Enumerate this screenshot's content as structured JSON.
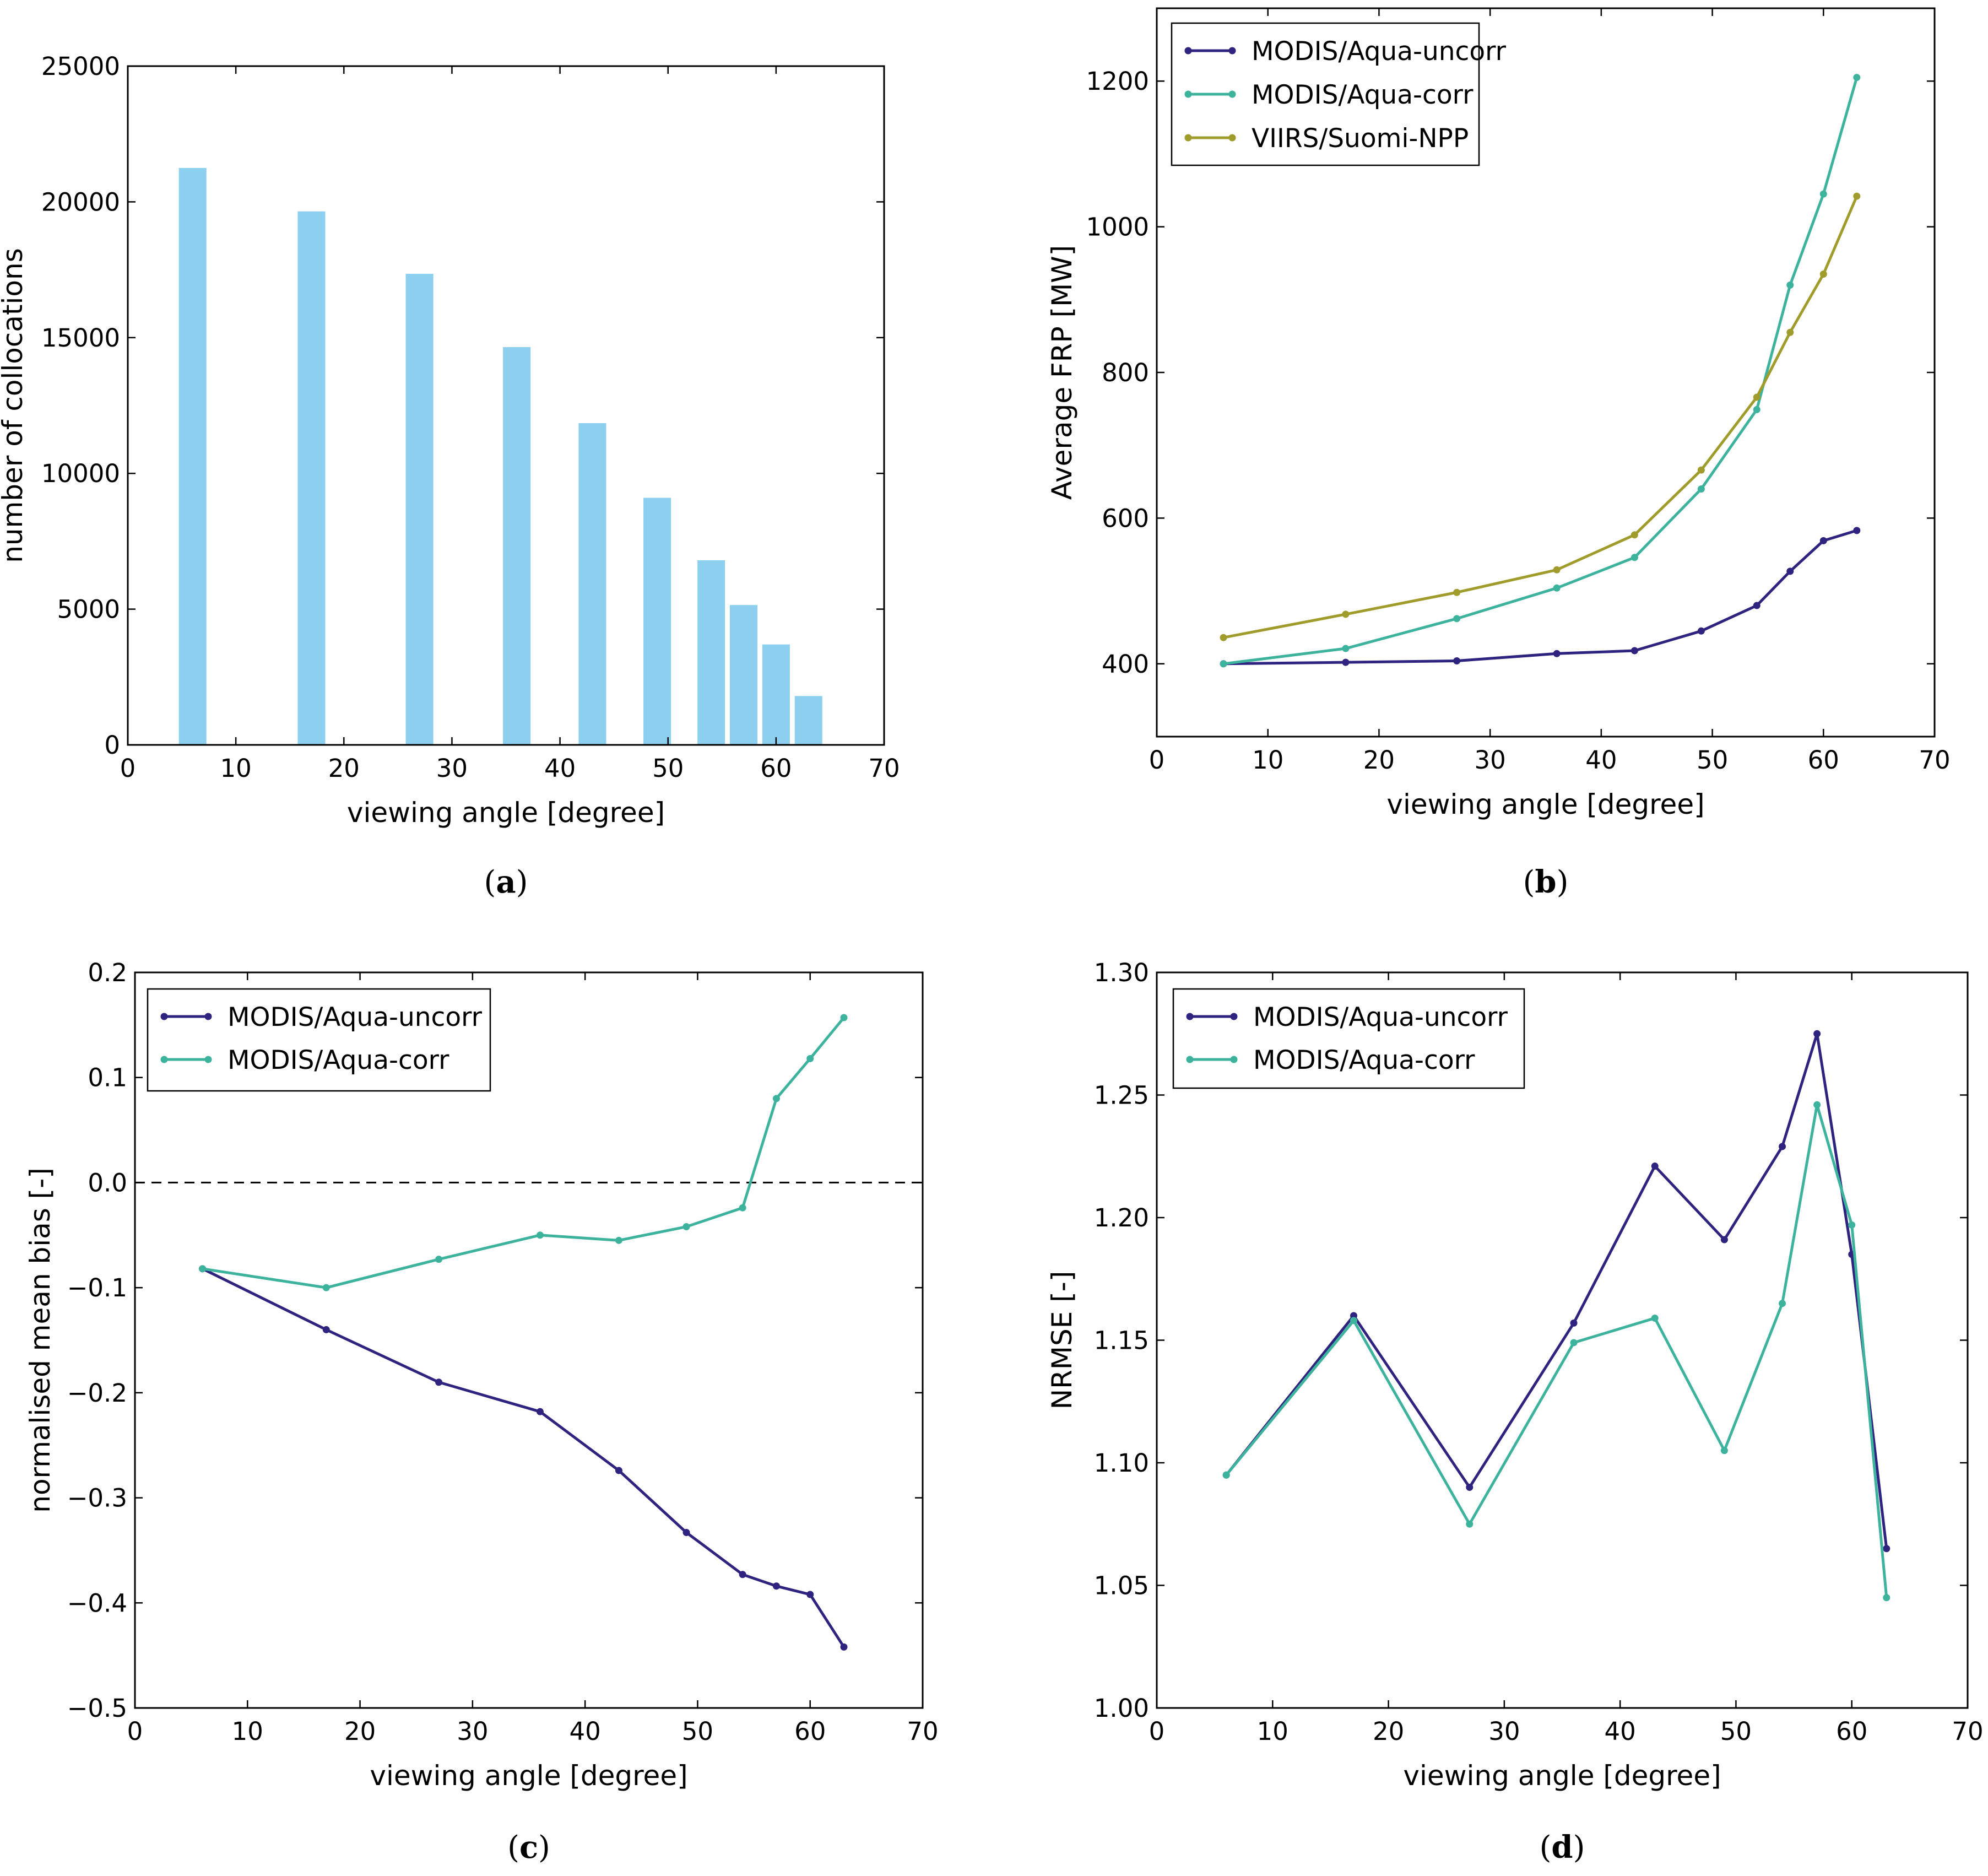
{
  "chart_data": [
    {
      "id": "a",
      "type": "bar",
      "panel_label": "(a)",
      "panel_letter": "a",
      "xlabel": "viewing angle [degree]",
      "ylabel": "number of collocations",
      "xlim": [
        0,
        70
      ],
      "ylim": [
        0,
        25000
      ],
      "xticks": [
        0,
        10,
        20,
        30,
        40,
        50,
        60,
        70
      ],
      "yticks": [
        0,
        5000,
        10000,
        15000,
        20000,
        25000
      ],
      "x": [
        6,
        17,
        27,
        36,
        43,
        49,
        54,
        57,
        60,
        63
      ],
      "values": [
        21250,
        19650,
        17350,
        14650,
        11850,
        9100,
        6800,
        5150,
        3700,
        1800
      ],
      "bar_color": "#8ccfee"
    },
    {
      "id": "b",
      "type": "line",
      "panel_label": "(b)",
      "panel_letter": "b",
      "xlabel": "viewing angle [degree]",
      "ylabel": "Average FRP [MW]",
      "xlim": [
        0,
        70
      ],
      "ylim": [
        300,
        1300
      ],
      "xticks": [
        0,
        10,
        20,
        30,
        40,
        50,
        60,
        70
      ],
      "yticks": [
        400,
        600,
        800,
        1000,
        1200
      ],
      "legend_position": "top-left",
      "x": [
        6,
        17,
        27,
        36,
        43,
        49,
        54,
        57,
        60,
        63
      ],
      "series": [
        {
          "name": "MODIS/Aqua-uncorr",
          "color": "#2e2480",
          "values": [
            400,
            402,
            404,
            414,
            418,
            445,
            480,
            527,
            569,
            583
          ]
        },
        {
          "name": "MODIS/Aqua-corr",
          "color": "#3db39e",
          "values": [
            400,
            421,
            462,
            504,
            546,
            640,
            749,
            920,
            1045,
            1205
          ]
        },
        {
          "name": "VIIRS/Suomi-NPP",
          "color": "#a09c2c",
          "values": [
            436,
            468,
            498,
            529,
            577,
            666,
            766,
            855,
            935,
            1042
          ]
        }
      ]
    },
    {
      "id": "c",
      "type": "line",
      "panel_label": "(c)",
      "panel_letter": "c",
      "xlabel": "viewing angle [degree]",
      "ylabel": "normalised mean bias [-]",
      "xlim": [
        0,
        70
      ],
      "ylim": [
        -0.5,
        0.2
      ],
      "xticks": [
        0,
        10,
        20,
        30,
        40,
        50,
        60,
        70
      ],
      "yticks": [
        -0.5,
        -0.4,
        -0.3,
        -0.2,
        -0.1,
        0.0,
        0.1,
        0.2
      ],
      "ytick_labels": [
        "−0.5",
        "−0.4",
        "−0.3",
        "−0.2",
        "−0.1",
        "0.0",
        "0.1",
        "0.2"
      ],
      "reference_line": 0.0,
      "legend_position": "top-left",
      "x": [
        6,
        17,
        27,
        36,
        43,
        49,
        54,
        57,
        60,
        63
      ],
      "series": [
        {
          "name": "MODIS/Aqua-uncorr",
          "color": "#2e2480",
          "values": [
            -0.082,
            -0.14,
            -0.19,
            -0.218,
            -0.274,
            -0.333,
            -0.373,
            -0.384,
            -0.392,
            -0.442
          ]
        },
        {
          "name": "MODIS/Aqua-corr",
          "color": "#3db39e",
          "values": [
            -0.082,
            -0.1,
            -0.073,
            -0.05,
            -0.055,
            -0.042,
            -0.024,
            0.08,
            0.118,
            0.157
          ]
        }
      ]
    },
    {
      "id": "d",
      "type": "line",
      "panel_label": "(d)",
      "panel_letter": "d",
      "xlabel": "viewing angle [degree]",
      "ylabel": "NRMSE [-]",
      "xlim": [
        0,
        70
      ],
      "ylim": [
        1.0,
        1.3
      ],
      "xticks": [
        0,
        10,
        20,
        30,
        40,
        50,
        60,
        70
      ],
      "yticks": [
        1.0,
        1.05,
        1.1,
        1.15,
        1.2,
        1.25,
        1.3
      ],
      "ytick_labels": [
        "1.00",
        "1.05",
        "1.10",
        "1.15",
        "1.20",
        "1.25",
        "1.30"
      ],
      "legend_position": "top-left",
      "x": [
        6,
        17,
        27,
        36,
        43,
        49,
        54,
        57,
        60,
        63
      ],
      "series": [
        {
          "name": "MODIS/Aqua-uncorr",
          "color": "#2e2480",
          "values": [
            1.095,
            1.16,
            1.09,
            1.157,
            1.221,
            1.191,
            1.229,
            1.275,
            1.185,
            1.065
          ]
        },
        {
          "name": "MODIS/Aqua-corr",
          "color": "#3db39e",
          "values": [
            1.095,
            1.158,
            1.075,
            1.149,
            1.159,
            1.105,
            1.165,
            1.246,
            1.197,
            1.045
          ]
        }
      ]
    }
  ]
}
